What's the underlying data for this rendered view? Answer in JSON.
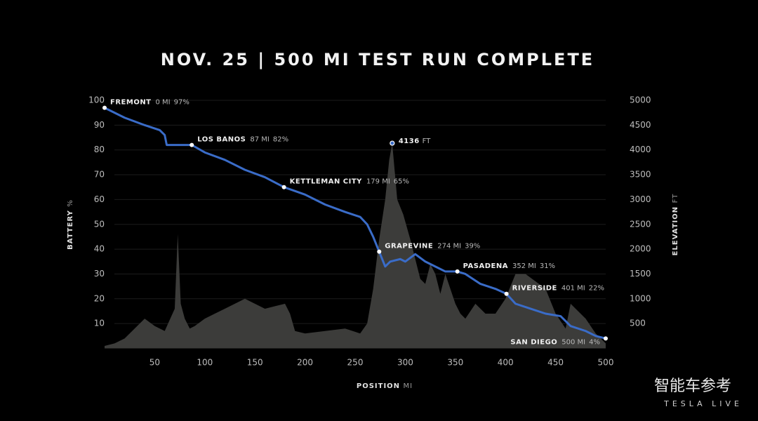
{
  "chart_data": {
    "type": "line",
    "title": "NOV. 25 | 500 MI TEST RUN COMPLETE",
    "x_label": "POSITION",
    "x_label_unit": "MI",
    "y_label": "BATTERY",
    "y_label_unit": "%",
    "y2_label": "ELEVATION",
    "y2_label_unit": "FT",
    "xlim": [
      0,
      500
    ],
    "xticks": [
      50,
      100,
      150,
      200,
      250,
      300,
      350,
      400,
      450,
      500
    ],
    "ylim": [
      0,
      100
    ],
    "yticks": [
      10,
      20,
      30,
      40,
      50,
      60,
      70,
      80,
      90,
      100
    ],
    "y2lim": [
      0,
      5000
    ],
    "y2ticks": [
      500,
      1000,
      1500,
      2000,
      2500,
      3000,
      3500,
      4000,
      4500,
      5000
    ],
    "grid": true,
    "series": [
      {
        "name": "BATTERY",
        "color": "#3a6cc8",
        "axis": "y",
        "x": [
          0,
          20,
          40,
          55,
          60,
          62,
          70,
          80,
          87,
          100,
          120,
          140,
          160,
          179,
          200,
          220,
          240,
          255,
          262,
          268,
          274,
          280,
          285,
          295,
          300,
          310,
          320,
          330,
          340,
          352,
          360,
          375,
          390,
          401,
          410,
          425,
          440,
          455,
          465,
          480,
          490,
          500
        ],
        "values": [
          97,
          93,
          90,
          88,
          86,
          82,
          82,
          82,
          82,
          79,
          76,
          72,
          69,
          65,
          62,
          58,
          55,
          53,
          50,
          45,
          39,
          33,
          35,
          36,
          35,
          38,
          35,
          33,
          31,
          31,
          30,
          26,
          24,
          22,
          18,
          16,
          14,
          13,
          9,
          7,
          5,
          4
        ]
      },
      {
        "name": "ELEVATION",
        "color": "#3c3c3a",
        "axis": "y2",
        "x": [
          0,
          10,
          20,
          30,
          40,
          50,
          60,
          70,
          73,
          76,
          80,
          85,
          90,
          100,
          110,
          120,
          130,
          140,
          150,
          160,
          170,
          180,
          185,
          190,
          200,
          220,
          240,
          255,
          262,
          268,
          274,
          280,
          284,
          287,
          292,
          298,
          305,
          310,
          315,
          320,
          325,
          330,
          335,
          340,
          345,
          350,
          355,
          360,
          370,
          380,
          390,
          400,
          410,
          420,
          430,
          440,
          450,
          460,
          465,
          470,
          480,
          490,
          500
        ],
        "values": [
          50,
          100,
          200,
          400,
          600,
          450,
          350,
          800,
          2300,
          900,
          600,
          400,
          450,
          600,
          700,
          800,
          900,
          1000,
          900,
          800,
          850,
          900,
          700,
          350,
          300,
          350,
          400,
          300,
          500,
          1200,
          2200,
          3000,
          3800,
          4136,
          3000,
          2700,
          2200,
          1800,
          1400,
          1300,
          1700,
          1500,
          1100,
          1500,
          1200,
          900,
          700,
          600,
          900,
          700,
          700,
          1000,
          1500,
          1500,
          1350,
          1200,
          700,
          400,
          900,
          800,
          600,
          300,
          100
        ]
      }
    ],
    "stops": [
      {
        "label": "FREMONT",
        "x": 0,
        "x_label": "0 MI",
        "value": 97,
        "value_label": "97%"
      },
      {
        "label": "LOS BANOS",
        "x": 87,
        "x_label": "87 MI",
        "value": 82,
        "value_label": "82%"
      },
      {
        "label": "KETTLEMAN CITY",
        "x": 179,
        "x_label": "179 MI",
        "value": 65,
        "value_label": "65%"
      },
      {
        "label": "GRAPEVINE",
        "x": 274,
        "x_label": "274 MI",
        "value": 39,
        "value_label": "39%"
      },
      {
        "label": "PASADENA",
        "x": 352,
        "x_label": "352 MI",
        "value": 31,
        "value_label": "31%"
      },
      {
        "label": "RIVERSIDE",
        "x": 401,
        "x_label": "401 MI",
        "value": 22,
        "value_label": "22%"
      },
      {
        "label": "SAN DIEGO",
        "x": 500,
        "x_label": "500 MI",
        "value": 4,
        "value_label": "4%"
      }
    ],
    "peak": {
      "x": 287,
      "value": 4136,
      "label": "4136",
      "unit": "FT"
    },
    "watermark": "智能车参考",
    "footer_brand": "TESLA LIVE"
  }
}
